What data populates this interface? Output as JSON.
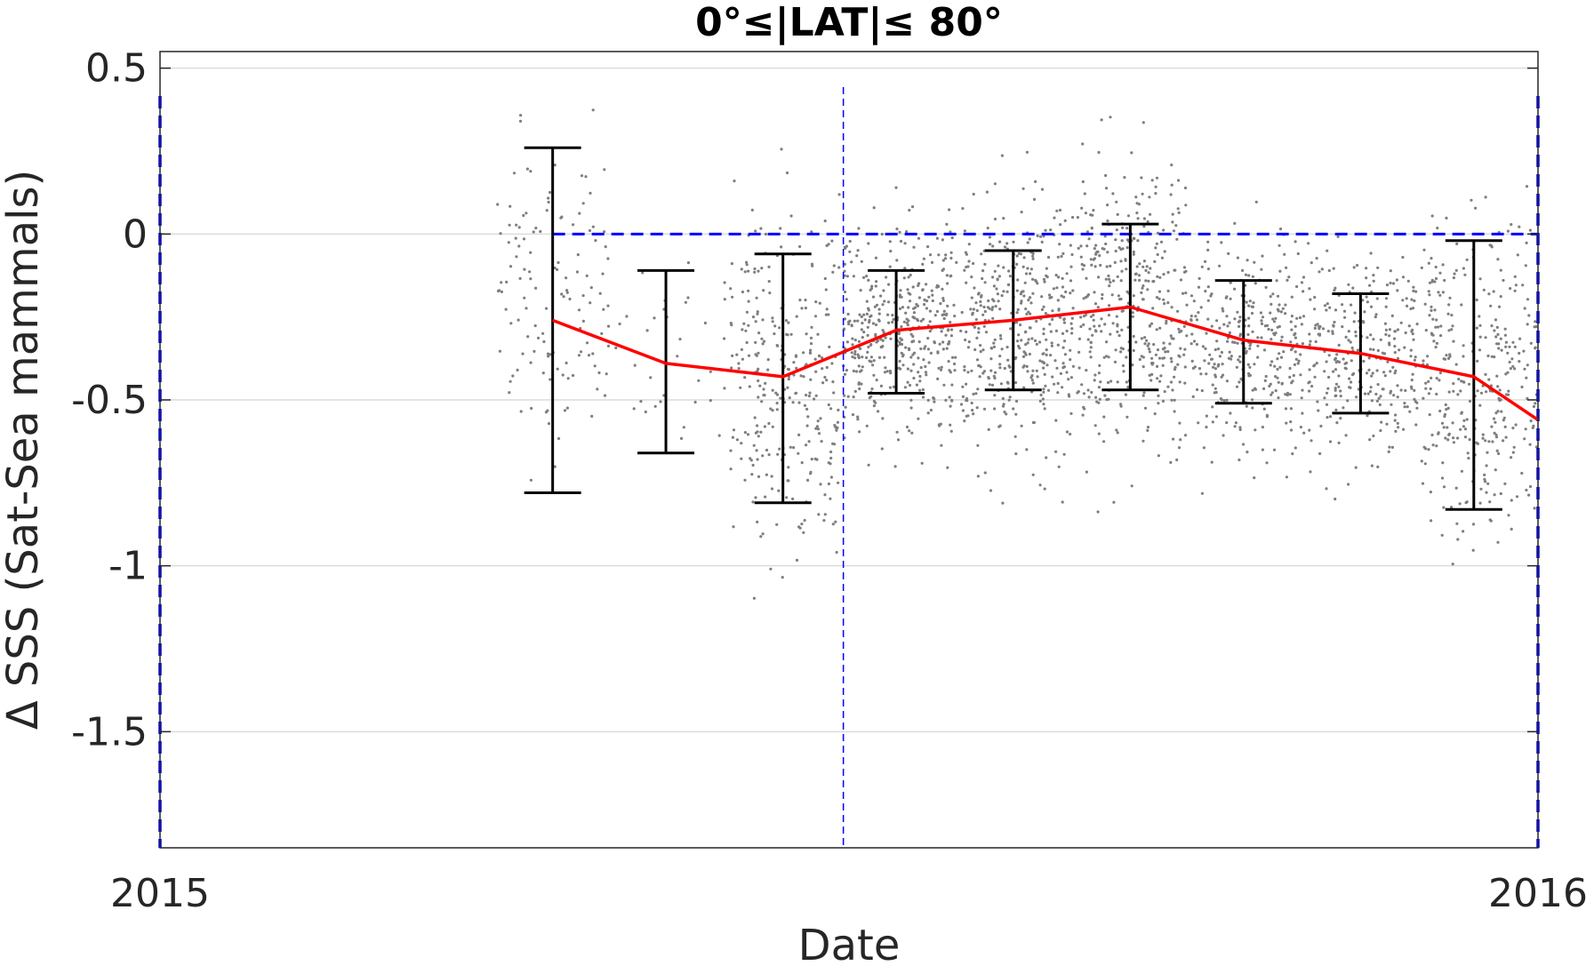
{
  "chart_data": {
    "type": "scatter",
    "title": "0°≤|LAT|≤ 80°",
    "xlabel": "Date",
    "ylabel": "Δ SSS (Sat-Sea mammals)",
    "xlim": [
      "2015-01-01",
      "2016-01-01"
    ],
    "ylim": [
      -1.85,
      0.55
    ],
    "xticks": [
      {
        "date": "2015-01-01",
        "label": "2015"
      },
      {
        "date": "2016-01-01",
        "label": "2016"
      }
    ],
    "yticks": [
      {
        "value": 0.5,
        "label": "0.5"
      },
      {
        "value": 0,
        "label": "0"
      },
      {
        "value": -0.5,
        "label": "-0.5"
      },
      {
        "value": -1,
        "label": "-1"
      },
      {
        "value": -1.5,
        "label": "-1.5"
      }
    ],
    "grid": true,
    "colors": {
      "points": "#7f7f7f",
      "mean_line": "#ff0000",
      "error_bars": "#000000",
      "reference_lines": "#0000ff",
      "grid": "#dcdcdc",
      "axes": "#262626"
    },
    "mean_series": {
      "dates": [
        "2015-04-15",
        "2015-05-15",
        "2015-06-15",
        "2015-07-15",
        "2015-08-15",
        "2015-09-15",
        "2015-10-15",
        "2015-11-15",
        "2015-12-15",
        "2016-01-01"
      ],
      "values": [
        -0.26,
        -0.39,
        -0.43,
        -0.29,
        -0.26,
        -0.22,
        -0.32,
        -0.36,
        -0.43,
        -0.56
      ]
    },
    "error_bars": [
      {
        "date": "2015-04-15",
        "low": -0.78,
        "high": 0.26
      },
      {
        "date": "2015-05-15",
        "low": -0.66,
        "high": -0.11
      },
      {
        "date": "2015-06-15",
        "low": -0.81,
        "high": -0.06
      },
      {
        "date": "2015-07-15",
        "low": -0.48,
        "high": -0.11
      },
      {
        "date": "2015-08-15",
        "low": -0.47,
        "high": -0.05
      },
      {
        "date": "2015-09-15",
        "low": -0.47,
        "high": 0.03
      },
      {
        "date": "2015-10-15",
        "low": -0.51,
        "high": -0.14
      },
      {
        "date": "2015-11-15",
        "low": -0.54,
        "high": -0.18
      },
      {
        "date": "2015-12-15",
        "low": -0.83,
        "high": -0.02
      }
    ],
    "reference_lines": {
      "zero_line": {
        "value": 0,
        "from": "2015-04-15",
        "to": "2016-01-01"
      },
      "vertical_dates": [
        "2015-01-01",
        "2015-07-01",
        "2016-01-01"
      ]
    },
    "scatter_clusters": [
      {
        "from": "2015-03-31",
        "to": "2015-04-30",
        "center": -0.22,
        "spread": 0.27,
        "count": 130
      },
      {
        "from": "2015-05-01",
        "to": "2015-05-31",
        "center": -0.38,
        "spread": 0.17,
        "count": 35
      },
      {
        "from": "2015-06-01",
        "to": "2015-06-30",
        "center": -0.42,
        "spread": 0.26,
        "count": 300
      },
      {
        "from": "2015-07-01",
        "to": "2015-07-31",
        "center": -0.29,
        "spread": 0.16,
        "count": 420
      },
      {
        "from": "2015-08-01",
        "to": "2015-08-31",
        "center": -0.28,
        "spread": 0.19,
        "count": 420
      },
      {
        "from": "2015-09-01",
        "to": "2015-09-30",
        "center": -0.23,
        "spread": 0.21,
        "count": 400
      },
      {
        "from": "2015-10-01",
        "to": "2015-10-31",
        "center": -0.33,
        "spread": 0.16,
        "count": 320
      },
      {
        "from": "2015-11-01",
        "to": "2015-11-30",
        "center": -0.37,
        "spread": 0.15,
        "count": 300
      },
      {
        "from": "2015-12-01",
        "to": "2016-01-01",
        "center": -0.41,
        "spread": 0.22,
        "count": 330
      }
    ]
  }
}
